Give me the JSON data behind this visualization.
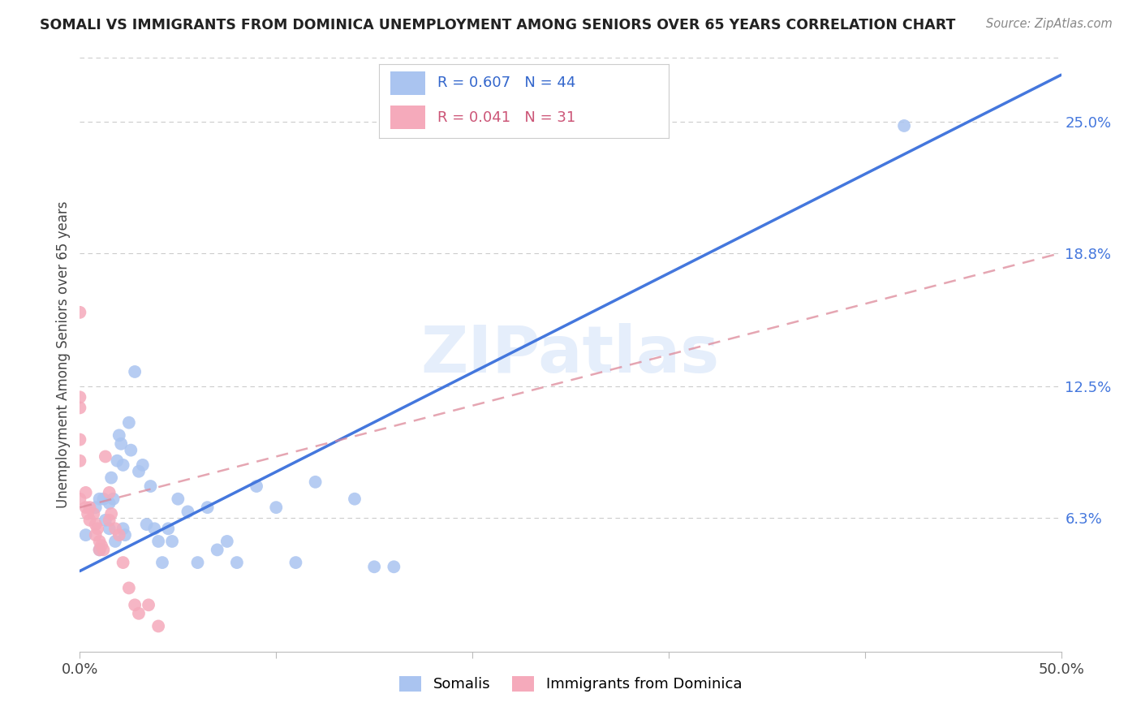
{
  "title": "SOMALI VS IMMIGRANTS FROM DOMINICA UNEMPLOYMENT AMONG SENIORS OVER 65 YEARS CORRELATION CHART",
  "source": "Source: ZipAtlas.com",
  "ylabel": "Unemployment Among Seniors over 65 years",
  "xlim": [
    0.0,
    0.5
  ],
  "ylim": [
    0.0,
    0.28
  ],
  "x_ticks": [
    0.0,
    0.1,
    0.2,
    0.3,
    0.4,
    0.5
  ],
  "x_tick_labels": [
    "0.0%",
    "",
    "",
    "",
    "",
    "50.0%"
  ],
  "y_ticks_right": [
    0.063,
    0.125,
    0.188,
    0.25
  ],
  "y_tick_labels_right": [
    "6.3%",
    "12.5%",
    "18.8%",
    "25.0%"
  ],
  "somali_color": "#aac4f0",
  "dominica_color": "#f5aabb",
  "somali_line_color": "#4477dd",
  "dominica_line_color": "#dd8899",
  "watermark": "ZIPatlas",
  "somali_R": 0.607,
  "somali_N": 44,
  "dominica_R": 0.041,
  "dominica_N": 31,
  "somali_x": [
    0.003,
    0.008,
    0.01,
    0.01,
    0.012,
    0.013,
    0.015,
    0.015,
    0.016,
    0.017,
    0.018,
    0.019,
    0.02,
    0.021,
    0.022,
    0.022,
    0.023,
    0.025,
    0.026,
    0.028,
    0.03,
    0.032,
    0.034,
    0.036,
    0.038,
    0.04,
    0.042,
    0.045,
    0.047,
    0.05,
    0.055,
    0.06,
    0.065,
    0.07,
    0.075,
    0.08,
    0.09,
    0.1,
    0.11,
    0.12,
    0.14,
    0.15,
    0.16,
    0.42
  ],
  "somali_y": [
    0.055,
    0.068,
    0.072,
    0.048,
    0.072,
    0.062,
    0.07,
    0.058,
    0.082,
    0.072,
    0.052,
    0.09,
    0.102,
    0.098,
    0.088,
    0.058,
    0.055,
    0.108,
    0.095,
    0.132,
    0.085,
    0.088,
    0.06,
    0.078,
    0.058,
    0.052,
    0.042,
    0.058,
    0.052,
    0.072,
    0.066,
    0.042,
    0.068,
    0.048,
    0.052,
    0.042,
    0.078,
    0.068,
    0.042,
    0.08,
    0.072,
    0.04,
    0.04,
    0.248
  ],
  "dominica_x": [
    0.0,
    0.0,
    0.0,
    0.0,
    0.0,
    0.0,
    0.003,
    0.003,
    0.004,
    0.005,
    0.005,
    0.007,
    0.008,
    0.008,
    0.009,
    0.01,
    0.01,
    0.011,
    0.012,
    0.013,
    0.015,
    0.015,
    0.016,
    0.018,
    0.02,
    0.022,
    0.025,
    0.028,
    0.03,
    0.035,
    0.04
  ],
  "dominica_y": [
    0.16,
    0.12,
    0.115,
    0.1,
    0.09,
    0.072,
    0.075,
    0.068,
    0.065,
    0.068,
    0.062,
    0.065,
    0.06,
    0.055,
    0.058,
    0.048,
    0.052,
    0.05,
    0.048,
    0.092,
    0.075,
    0.062,
    0.065,
    0.058,
    0.055,
    0.042,
    0.03,
    0.022,
    0.018,
    0.022,
    0.012
  ],
  "somali_line_x": [
    0.0,
    0.5
  ],
  "somali_line_y": [
    0.038,
    0.272
  ],
  "dominica_line_x": [
    0.0,
    0.5
  ],
  "dominica_line_y": [
    0.068,
    0.188
  ]
}
